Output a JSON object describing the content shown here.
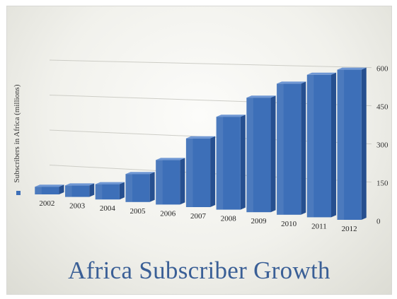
{
  "chart_data": {
    "type": "bar",
    "title": "Africa Subscriber Growth",
    "ylabel": "Subscribers in Africa (millions)",
    "xlabel": "",
    "categories": [
      "2002",
      "2003",
      "2004",
      "2005",
      "2006",
      "2007",
      "2008",
      "2009",
      "2010",
      "2011",
      "2012"
    ],
    "values": [
      30,
      45,
      60,
      110,
      175,
      270,
      365,
      450,
      515,
      560,
      590
    ],
    "ylim": [
      0,
      600
    ],
    "yticks": [
      0,
      150,
      300,
      450,
      600
    ],
    "ytick_labels": [
      "0",
      "150",
      "300",
      "450",
      "600"
    ],
    "axis_side": "right",
    "grid": true,
    "colors": {
      "bar_front": "#3d6fb8",
      "bar_side": "#264f8f",
      "bar_top": "#6f97d4",
      "title": "#3a5f96"
    }
  }
}
